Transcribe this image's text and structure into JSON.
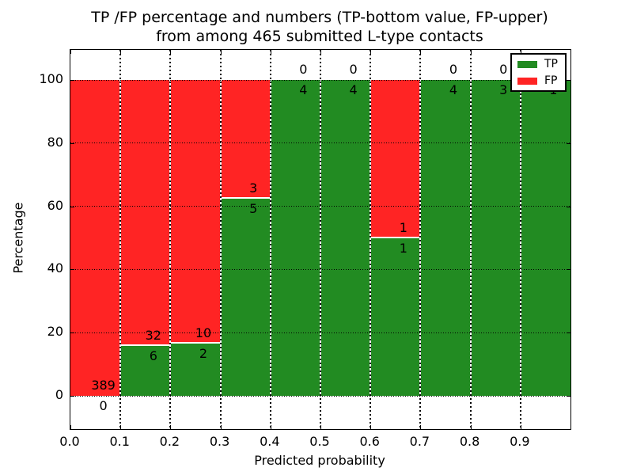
{
  "figure": {
    "title_line1": "TP /FP percentage and numbers (TP-bottom value, FP-upper)",
    "title_line2": "from among 465 submitted L-type contacts"
  },
  "axes": {
    "xlabel": "Predicted probability",
    "ylabel": "Percentage",
    "xtick_labels": [
      "0.0",
      "0.1",
      "0.2",
      "0.3",
      "0.4",
      "0.5",
      "0.6",
      "0.7",
      "0.8",
      "0.9"
    ],
    "ytick_labels": [
      "0",
      "20",
      "40",
      "60",
      "80",
      "100"
    ],
    "ytick_values": [
      0,
      20,
      40,
      60,
      80,
      100
    ]
  },
  "legend": {
    "items": [
      {
        "label": "TP",
        "color": "#228b22"
      },
      {
        "label": "FP",
        "color": "#ff2424"
      }
    ]
  },
  "colors": {
    "tp": "#228b22",
    "fp": "#ff2424",
    "grid": "#000000",
    "frame": "#000000",
    "background": "#ffffff"
  },
  "chart_data": {
    "type": "bar",
    "stacked": true,
    "normalized_to_percent": true,
    "title": "TP /FP percentage and numbers (TP-bottom value, FP-upper) from among 465 submitted L-type contacts",
    "xlabel": "Predicted probability",
    "ylabel": "Percentage",
    "x_bins": [
      [
        0.0,
        0.1
      ],
      [
        0.1,
        0.2
      ],
      [
        0.2,
        0.3
      ],
      [
        0.3,
        0.4
      ],
      [
        0.4,
        0.5
      ],
      [
        0.5,
        0.6
      ],
      [
        0.6,
        0.7
      ],
      [
        0.7,
        0.8
      ],
      [
        0.8,
        0.9
      ],
      [
        0.9,
        1.0
      ]
    ],
    "series": [
      {
        "name": "TP",
        "position": "bottom",
        "color": "#228b22",
        "values": [
          0,
          6,
          2,
          5,
          4,
          4,
          1,
          4,
          3,
          1
        ]
      },
      {
        "name": "FP",
        "position": "upper",
        "color": "#ff2424",
        "values": [
          389,
          32,
          10,
          3,
          0,
          0,
          1,
          0,
          0,
          0
        ]
      }
    ],
    "tp_percent_by_bin": [
      0,
      15.79,
      16.67,
      62.5,
      100,
      100,
      50,
      100,
      100,
      100
    ],
    "total_contacts": 465,
    "ylim_percent": [
      0,
      100
    ],
    "xlim": [
      0.0,
      1.0
    ],
    "grid": true,
    "legend_position": "upper right"
  }
}
